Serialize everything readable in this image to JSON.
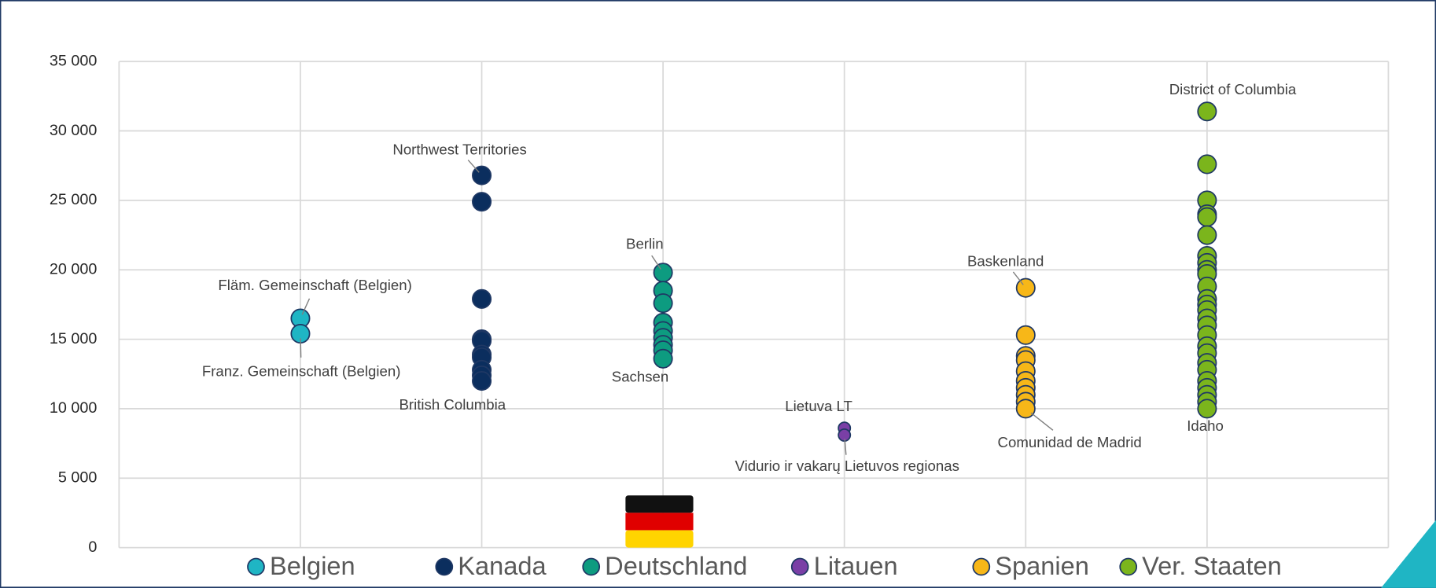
{
  "chart_data": {
    "type": "scatter",
    "ylim": [
      0,
      35000
    ],
    "yticks": [
      {
        "value": 0,
        "label": "0"
      },
      {
        "value": 5000,
        "label": "5 000"
      },
      {
        "value": 10000,
        "label": "10 000"
      },
      {
        "value": 15000,
        "label": "15 000"
      },
      {
        "value": 20000,
        "label": "20 000"
      },
      {
        "value": 25000,
        "label": "25 000"
      },
      {
        "value": 30000,
        "label": "30 000"
      },
      {
        "value": 35000,
        "label": "35 000"
      }
    ],
    "grid": true,
    "legend": "bottom",
    "series": [
      {
        "name": "Belgien",
        "color": "#1fb5c4",
        "values": [
          16500,
          15400
        ],
        "point_labels": [
          "Fläm. Gemeinschaft (Belgien)",
          "Franz. Gemeinschaft (Belgien)"
        ]
      },
      {
        "name": "Kanada",
        "color": "#0b2e5e",
        "values": [
          26800,
          24900,
          17900,
          15000,
          14900,
          13900,
          13700,
          12800,
          12400,
          12000
        ],
        "point_labels": [
          "Northwest Territories",
          null,
          null,
          null,
          null,
          null,
          null,
          null,
          null,
          "British Columbia"
        ]
      },
      {
        "name": "Deutschland",
        "color": "#0d9b80",
        "values": [
          19800,
          18500,
          17600,
          16200,
          15600,
          15100,
          14600,
          14200,
          13600
        ],
        "point_labels": [
          "Berlin",
          null,
          null,
          null,
          null,
          null,
          null,
          null,
          "Sachsen"
        ]
      },
      {
        "name": "Litauen",
        "color": "#7a3fa6",
        "values": [
          8600,
          8100
        ],
        "point_labels": [
          "Lietuva LT",
          "Vidurio ir vakarų Lietuvos regionas"
        ]
      },
      {
        "name": "Spanien",
        "color": "#f7b718",
        "values": [
          18700,
          15300,
          13800,
          13500,
          12700,
          12000,
          11500,
          11000,
          10500,
          10000
        ],
        "point_labels": [
          "Baskenland",
          null,
          null,
          null,
          null,
          null,
          null,
          null,
          null,
          "Comunidad de Madrid"
        ]
      },
      {
        "name": "Ver. Staaten",
        "color": "#7bb51c",
        "values": [
          31400,
          27600,
          25000,
          24000,
          23800,
          22500,
          21000,
          20500,
          20000,
          19700,
          18800,
          17900,
          17500,
          17100,
          16500,
          16000,
          15300,
          14500,
          14000,
          13300,
          12800,
          12000,
          11500,
          11000,
          10500,
          10000
        ],
        "point_labels": [
          "District of Columbia",
          null,
          null,
          null,
          null,
          null,
          null,
          null,
          null,
          null,
          null,
          null,
          null,
          null,
          null,
          null,
          null,
          null,
          null,
          null,
          null,
          null,
          null,
          null,
          null,
          "Idaho"
        ]
      }
    ]
  }
}
